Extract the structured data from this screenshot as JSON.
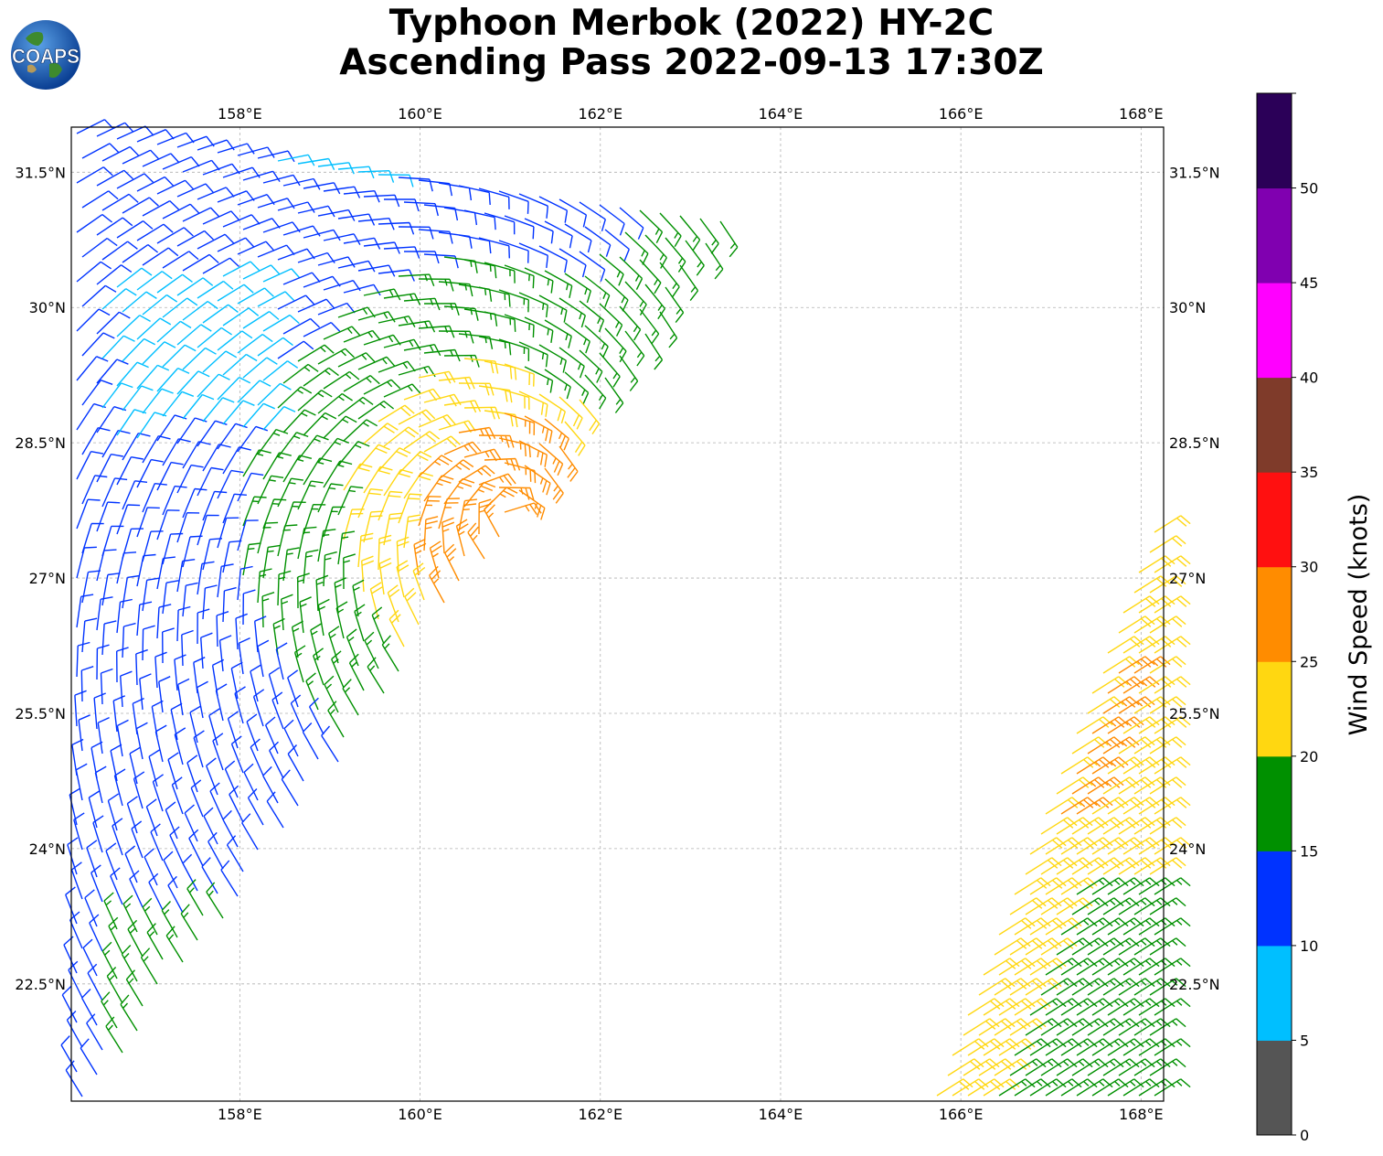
{
  "title": {
    "line1": "Typhoon Merbok (2022) HY-2C",
    "line2": "Ascending Pass 2022-09-13 17:30Z"
  },
  "logo": {
    "text": "COAPS",
    "icon": "globe-icon"
  },
  "map": {
    "lon_range": [
      156.13,
      168.25
    ],
    "lat_range": [
      21.2,
      32.0
    ],
    "lon_ticks": [
      "158°E",
      "160°E",
      "162°E",
      "164°E",
      "166°E",
      "168°E"
    ],
    "lon_tick_values": [
      158,
      160,
      162,
      164,
      166,
      168
    ],
    "lat_ticks": [
      "31.5°N",
      "30°N",
      "28.5°N",
      "27°N",
      "25.5°N",
      "24°N",
      "22.5°N"
    ],
    "lat_tick_values": [
      31.5,
      30,
      28.5,
      27,
      25.5,
      24,
      22.5
    ],
    "grid": true
  },
  "colorbar": {
    "label": "Wind Speed (knots)",
    "ticks": [
      "0",
      "5",
      "10",
      "15",
      "20",
      "25",
      "30",
      "35",
      "40",
      "45",
      "50"
    ],
    "bins": [
      {
        "min": 0,
        "max": 5,
        "color": "#555555"
      },
      {
        "min": 5,
        "max": 10,
        "color": "#00bfff"
      },
      {
        "min": 10,
        "max": 15,
        "color": "#0033ff"
      },
      {
        "min": 15,
        "max": 20,
        "color": "#009000"
      },
      {
        "min": 20,
        "max": 25,
        "color": "#ffd711"
      },
      {
        "min": 25,
        "max": 30,
        "color": "#ff8c00"
      },
      {
        "min": 30,
        "max": 35,
        "color": "#ff1010"
      },
      {
        "min": 35,
        "max": 40,
        "color": "#7f3b2a"
      },
      {
        "min": 40,
        "max": 45,
        "color": "#ff00ff"
      },
      {
        "min": 45,
        "max": 50,
        "color": "#8000b0"
      },
      {
        "min": 50,
        "max": 55,
        "color": "#2b0058"
      }
    ]
  }
}
